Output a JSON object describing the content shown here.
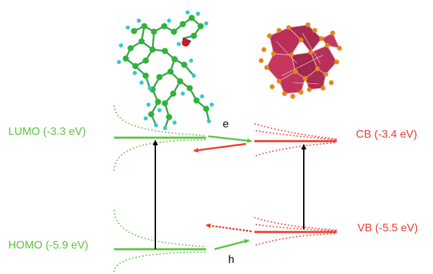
{
  "colors": {
    "organic": "#5cc23e",
    "inorganic": "#ec3a2d",
    "arrow": "#000000",
    "carbon": "#2fb33a",
    "hydrogen": "#37c9cf",
    "oxygen": "#d8141b",
    "nitrogen": "#2f2fa8",
    "crystal_core": "#b6244f",
    "crystal_vertex": "#e08818"
  },
  "organic_levels": {
    "lumo_label": "LUMO (-3.3 eV)",
    "homo_label": "HOMO (-5.9 eV)"
  },
  "inorganic_levels": {
    "cb_label": "CB (-3.4 eV)",
    "vb_label": "VB (-5.5 eV)"
  },
  "charge_transfer": {
    "electron_label": "e",
    "hole_label": "h"
  },
  "molecules": {
    "left_icon": "organic-molecule-ball-and-stick",
    "right_icon": "inorganic-crystal-polyhedra"
  }
}
